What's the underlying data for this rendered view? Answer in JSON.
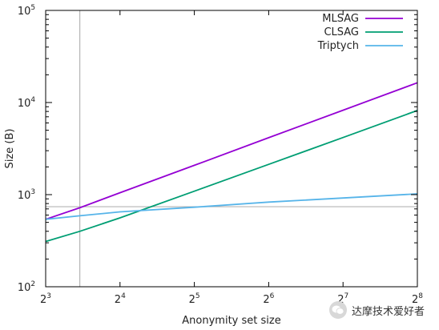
{
  "chart_data": {
    "type": "line",
    "xlabel": "Anonymity set size",
    "ylabel": "Size (B)",
    "x_scale": "log2",
    "y_scale": "log10",
    "xlim": [
      8,
      256
    ],
    "ylim": [
      100,
      100000
    ],
    "x_ticks": [
      {
        "value": 8,
        "base": "2",
        "exp": "3"
      },
      {
        "value": 16,
        "base": "2",
        "exp": "4"
      },
      {
        "value": 32,
        "base": "2",
        "exp": "5"
      },
      {
        "value": 64,
        "base": "2",
        "exp": "6"
      },
      {
        "value": 128,
        "base": "2",
        "exp": "7"
      },
      {
        "value": 256,
        "base": "2",
        "exp": "8"
      }
    ],
    "y_ticks": [
      {
        "value": 100,
        "base": "10",
        "exp": "2"
      },
      {
        "value": 1000,
        "base": "10",
        "exp": "3"
      },
      {
        "value": 10000,
        "base": "10",
        "exp": "4"
      },
      {
        "value": 100000,
        "base": "10",
        "exp": "5"
      }
    ],
    "series": [
      {
        "name": "MLSAG",
        "color": "#9400d3",
        "x": [
          8,
          11,
          16,
          32,
          64,
          128,
          256
        ],
        "y": [
          540,
          720,
          1050,
          2080,
          4150,
          8250,
          16400
        ]
      },
      {
        "name": "CLSAG",
        "color": "#009e73",
        "x": [
          8,
          11,
          16,
          32,
          64,
          128,
          256
        ],
        "y": [
          310,
          400,
          560,
          1090,
          2130,
          4170,
          8200
        ]
      },
      {
        "name": "Triptych",
        "color": "#56b4e9",
        "x": [
          8,
          11,
          16,
          32,
          64,
          128,
          256
        ],
        "y": [
          540,
          590,
          650,
          730,
          830,
          920,
          1020
        ]
      }
    ],
    "reference_lines": {
      "x": 11,
      "y": 740,
      "color": "#b4b4b4"
    },
    "legend_position": "top-right",
    "grid": false
  },
  "watermark": {
    "text": "达摩技术爱好者",
    "icon": "wechat-icon"
  }
}
